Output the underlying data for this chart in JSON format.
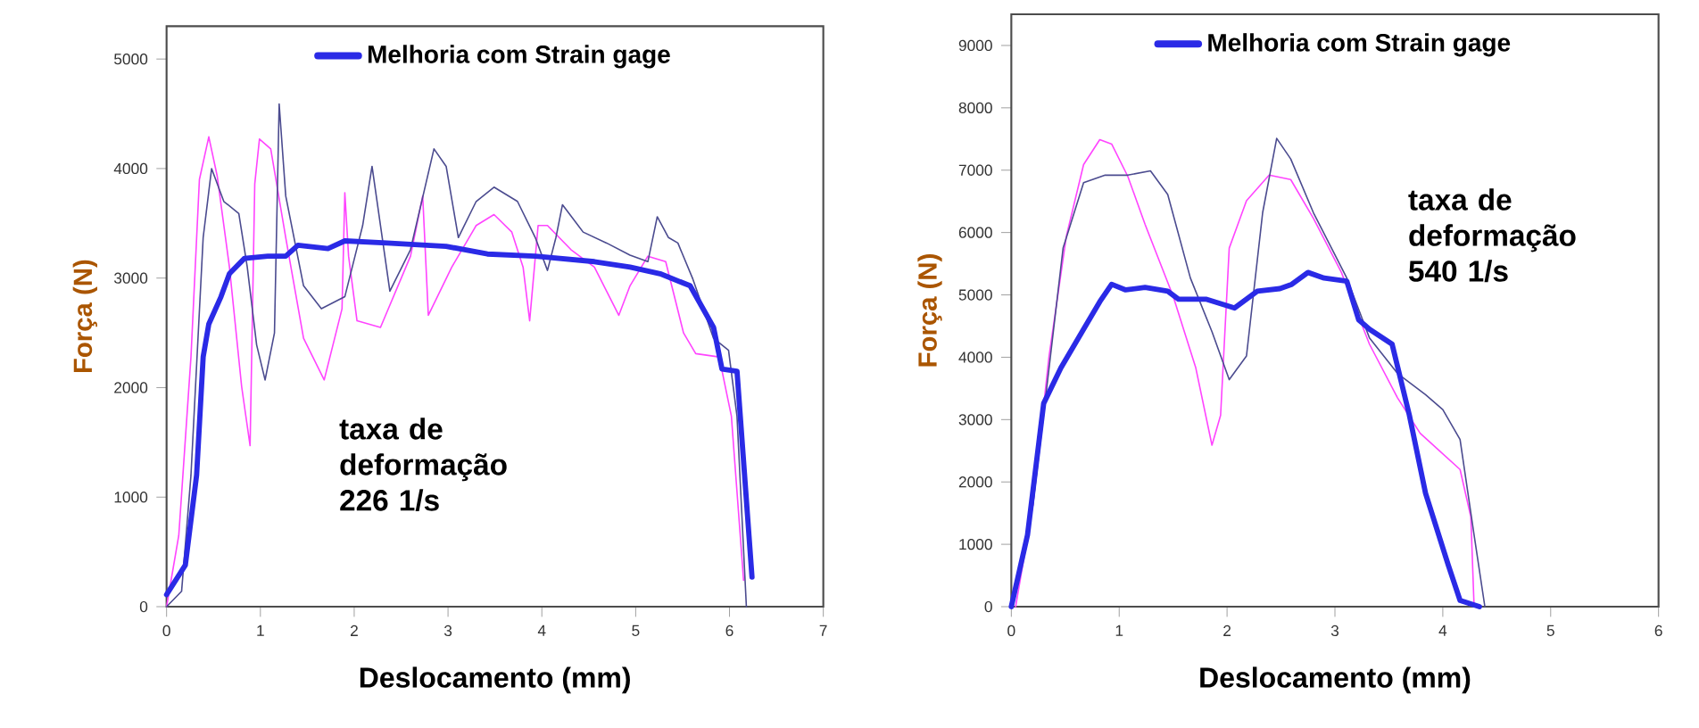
{
  "chart_data": [
    {
      "type": "line",
      "xlabel": "Deslocamento (mm)",
      "ylabel": "Força (N)",
      "xlim": [
        0,
        7
      ],
      "xticks": [
        0,
        1,
        2,
        3,
        4,
        5,
        6,
        7
      ],
      "ylim": [
        0,
        5300
      ],
      "yticks": [
        0,
        1000,
        2000,
        3000,
        4000,
        5000
      ],
      "legend": "top",
      "annotations": [
        "taxa de deformação 226 1/s"
      ],
      "series": [
        {
          "color": "#ff44ff",
          "x": [
            0,
            0.13,
            0.26,
            0.35,
            0.45,
            0.54,
            0.67,
            0.8,
            0.89,
            0.94,
            0.99,
            1.11,
            1.27,
            1.46,
            1.68,
            1.87,
            1.9,
            1.94,
            2.03,
            2.28,
            2.6,
            2.73,
            2.79,
            3.04,
            3.3,
            3.49,
            3.68,
            3.8,
            3.87,
            3.96,
            4.06,
            4.31,
            4.56,
            4.82,
            4.94,
            5.13,
            5.32,
            5.51,
            5.64,
            5.89,
            6.02,
            6.15
          ],
          "values": [
            0,
            650,
            2280,
            3900,
            4290,
            3930,
            3100,
            2010,
            1470,
            3860,
            4270,
            4180,
            3370,
            2450,
            2070,
            2720,
            3780,
            3200,
            2610,
            2550,
            3200,
            3750,
            2660,
            3100,
            3480,
            3580,
            3420,
            3100,
            2610,
            3480,
            3480,
            3260,
            3100,
            2660,
            2930,
            3200,
            3150,
            2500,
            2310,
            2280,
            1740,
            240
          ]
        },
        {
          "color": "#4b4b8f",
          "x": [
            0,
            0.16,
            0.26,
            0.39,
            0.48,
            0.61,
            0.77,
            0.86,
            0.96,
            1.05,
            1.15,
            1.2,
            1.27,
            1.46,
            1.65,
            1.9,
            2.09,
            2.19,
            2.38,
            2.6,
            2.85,
            2.98,
            3.11,
            3.3,
            3.49,
            3.74,
            3.93,
            4.06,
            4.15,
            4.22,
            4.44,
            4.69,
            4.94,
            5.13,
            5.23,
            5.35,
            5.45,
            5.61,
            5.83,
            5.99,
            6.08,
            6.18
          ],
          "values": [
            0,
            140,
            1200,
            3370,
            4000,
            3700,
            3590,
            3100,
            2390,
            2070,
            2500,
            4590,
            3750,
            2930,
            2720,
            2830,
            3480,
            4020,
            2880,
            3260,
            4180,
            4020,
            3370,
            3700,
            3830,
            3700,
            3370,
            3070,
            3370,
            3670,
            3420,
            3320,
            3210,
            3150,
            3560,
            3370,
            3320,
            2990,
            2450,
            2340,
            1740,
            0
          ]
        },
        {
          "name": "Melhoria com Strain gage",
          "color": "#2a2ae6",
          "x": [
            0,
            0.2,
            0.32,
            0.39,
            0.45,
            0.58,
            0.67,
            0.83,
            1.08,
            1.27,
            1.4,
            1.72,
            1.9,
            2.35,
            2.98,
            3.42,
            3.93,
            4.56,
            4.94,
            5.26,
            5.58,
            5.83,
            5.92,
            6.08,
            6.24
          ],
          "values": [
            110,
            380,
            1200,
            2280,
            2580,
            2830,
            3040,
            3180,
            3200,
            3200,
            3300,
            3270,
            3340,
            3320,
            3290,
            3220,
            3200,
            3150,
            3100,
            3040,
            2930,
            2550,
            2170,
            2150,
            270
          ]
        }
      ]
    },
    {
      "type": "line",
      "xlabel": "Deslocamento (mm)",
      "ylabel": "Força (N)",
      "xlim": [
        0,
        6
      ],
      "xticks": [
        0,
        1,
        2,
        3,
        4,
        5,
        6
      ],
      "ylim": [
        0,
        9500
      ],
      "yticks": [
        0,
        1000,
        2000,
        3000,
        4000,
        5000,
        6000,
        7000,
        8000,
        9000
      ],
      "legend": "top",
      "annotations": [
        "taxa de deformação 540 1/s"
      ],
      "series": [
        {
          "color": "#ff44ff",
          "x": [
            0.04,
            0.2,
            0.35,
            0.51,
            0.67,
            0.82,
            0.93,
            1.08,
            1.24,
            1.5,
            1.71,
            1.86,
            1.94,
            2.02,
            2.18,
            2.39,
            2.59,
            2.8,
            3.06,
            3.32,
            3.58,
            3.79,
            4.16,
            4.26,
            4.29
          ],
          "values": [
            0,
            1630,
            4020,
            5940,
            7090,
            7490,
            7420,
            6900,
            6130,
            4980,
            3830,
            2590,
            3070,
            5750,
            6510,
            6920,
            6850,
            6230,
            5360,
            4210,
            3350,
            2780,
            2200,
            1440,
            0
          ]
        },
        {
          "color": "#4b4b8f",
          "x": [
            0,
            0.2,
            0.35,
            0.48,
            0.67,
            0.87,
            1.08,
            1.29,
            1.45,
            1.66,
            1.86,
            2.02,
            2.18,
            2.33,
            2.46,
            2.59,
            2.8,
            3.11,
            3.32,
            3.58,
            3.84,
            4.0,
            4.16,
            4.29,
            4.39
          ],
          "values": [
            0,
            1630,
            3830,
            5750,
            6800,
            6920,
            6920,
            6990,
            6610,
            5270,
            4410,
            3640,
            4020,
            6320,
            7510,
            7180,
            6320,
            5270,
            4310,
            3740,
            3400,
            3160,
            2680,
            1150,
            0
          ]
        },
        {
          "name": "Melhoria com Strain gage",
          "color": "#2a2ae6",
          "x": [
            0,
            0.15,
            0.3,
            0.46,
            0.67,
            0.82,
            0.93,
            1.06,
            1.24,
            1.45,
            1.55,
            1.81,
            2.07,
            2.28,
            2.49,
            2.6,
            2.75,
            2.9,
            3.11,
            3.22,
            3.32,
            3.53,
            3.69,
            3.84,
            4.05,
            4.16,
            4.34
          ],
          "values": [
            0,
            1150,
            3260,
            3830,
            4450,
            4890,
            5170,
            5080,
            5120,
            5060,
            4930,
            4930,
            4790,
            5060,
            5100,
            5170,
            5360,
            5270,
            5220,
            4600,
            4450,
            4210,
            3070,
            1820,
            670,
            100,
            0
          ]
        }
      ]
    }
  ]
}
